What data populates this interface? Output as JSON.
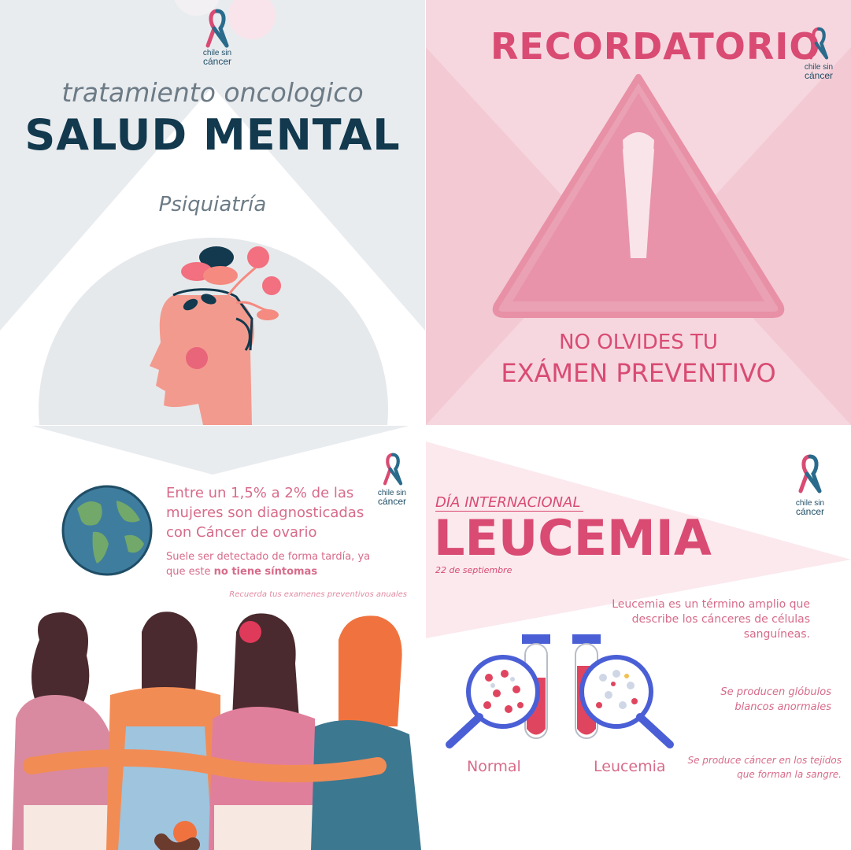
{
  "colors": {
    "navy": "#12394d",
    "pink": "#d94b73",
    "pink_text": "#d76b8a",
    "grey_text": "#6c7b86",
    "salmon": "#f39a8e",
    "light_grey_bg": "#e9ecef",
    "pink_bg": "#f6d7df"
  },
  "logo": {
    "line1": "chile sin",
    "line2": "cáncer",
    "icon": "ribbon-icon"
  },
  "panel_mental": {
    "subtitle": "tratamiento oncologico",
    "title": "SALUD MENTAL",
    "specialty": "Psiquiatría",
    "illustration": "head-with-flowers-icon"
  },
  "panel_reminder": {
    "title": "RECORDATORIO",
    "icon": "warning-triangle-icon",
    "line1": "NO OLVIDES TU",
    "line2": "EXÁMEN PREVENTIVO"
  },
  "panel_ovarian": {
    "icon": "globe-icon",
    "headline": [
      "Entre un 1,5% a 2% de las",
      "mujeres son diagnosticadas",
      "con Cáncer de ovario"
    ],
    "detail_line1": "Suele ser detectado de forma tardía, ya",
    "detail_pre": "que este ",
    "detail_bold": "no tiene síntomas",
    "reminder": "Recuerda tus examenes preventivos anuales",
    "illustration": "women-embracing-icon"
  },
  "panel_leukemia": {
    "kicker": "DÍA INTERNACIONAL",
    "title": "LEUCEMIA",
    "date": "22 de septiembre",
    "description": [
      "Leucemia es un término amplio que",
      "describe los cánceres de células",
      "sanguíneas."
    ],
    "fact1": [
      "Se producen glóbulos",
      "blancos anormales"
    ],
    "fact2": [
      "Se produce cáncer en los tejidos",
      "que forman la sangre."
    ],
    "label_normal": "Normal",
    "label_leukemia": "Leucemia",
    "tube_icon": "test-tube-icon",
    "magnifier_icon": "magnifier-icon"
  }
}
